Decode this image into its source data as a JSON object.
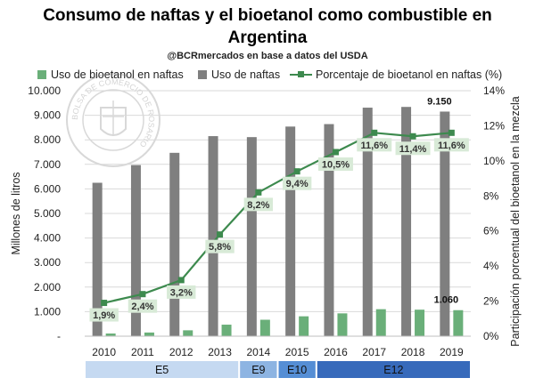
{
  "chart_data": {
    "type": "bar+line",
    "title_line1": "Consumo de naftas y el bioetanol como combustible en",
    "title_line2": "Argentina",
    "subtitle": "@BCRmercados en base a datos del USDA",
    "ylabel_left": "Millones de litros",
    "ylabel_right": "Participación porcentual del bioetanol en la mezcla",
    "ylim_left": [
      0,
      10000
    ],
    "ylim_right": [
      0,
      14
    ],
    "y_ticks_left": [
      "-",
      "1.000",
      "2.000",
      "3.000",
      "4.000",
      "5.000",
      "6.000",
      "7.000",
      "8.000",
      "9.000",
      "10.000"
    ],
    "y_ticks_right": [
      "0%",
      "2%",
      "4%",
      "6%",
      "8%",
      "10%",
      "12%",
      "14%"
    ],
    "categories": [
      "2010",
      "2011",
      "2012",
      "2013",
      "2014",
      "2015",
      "2016",
      "2017",
      "2018",
      "2019"
    ],
    "series": [
      {
        "name": "Uso de bioetanol en naftas",
        "type": "bar",
        "color": "#6aaf79",
        "values": [
          110,
          150,
          240,
          470,
          670,
          810,
          930,
          1100,
          1080,
          1060
        ]
      },
      {
        "name": "Uso de naftas",
        "type": "bar",
        "color": "#7f7f7f",
        "values": [
          6250,
          6970,
          7470,
          8150,
          8110,
          8540,
          8640,
          9310,
          9340,
          9150
        ]
      },
      {
        "name": "Porcentaje de bioetanol en naftas (%)",
        "type": "line",
        "axis": "right",
        "color": "#3d8a4e",
        "values": [
          1.9,
          2.4,
          3.2,
          5.8,
          8.2,
          9.4,
          10.5,
          11.6,
          11.4,
          11.6
        ],
        "labels": [
          "1,9%",
          "2,4%",
          "3,2%",
          "5,8%",
          "8,2%",
          "9,4%",
          "10,5%",
          "11,6%",
          "11,4%",
          "11,6%"
        ]
      }
    ],
    "annotations": {
      "naftas_2019": "9.150",
      "bioetanol_2019": "1.060"
    },
    "stages": [
      {
        "label": "E5",
        "from": "2010",
        "to": "2013",
        "color": "#c5d9f1"
      },
      {
        "label": "E9",
        "from": "2014",
        "to": "2014",
        "color": "#8db4e2"
      },
      {
        "label": "E10",
        "from": "2015",
        "to": "2015",
        "color": "#558ed5"
      },
      {
        "label": "E12",
        "from": "2016",
        "to": "2019",
        "color": "#376abb"
      }
    ]
  },
  "watermark": {
    "text": "BOLSA DE COMERCIO DE ROSARIO"
  }
}
